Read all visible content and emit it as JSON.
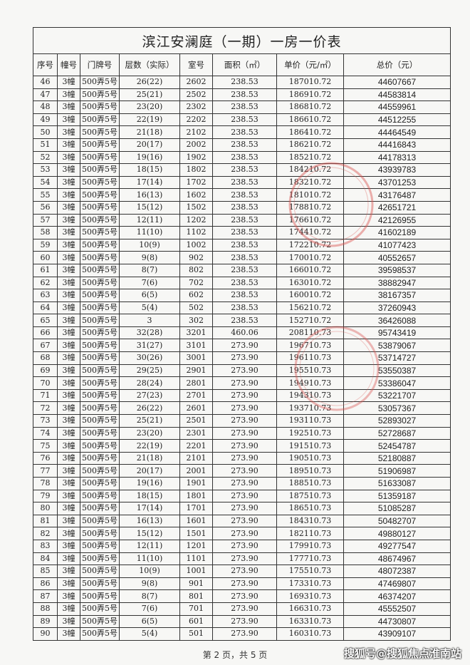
{
  "title": "滨江安澜庭（一期）一房一价表",
  "headers": [
    "序号",
    "幢号",
    "门牌号",
    "层数（实际）",
    "室号",
    "面积（㎡）",
    "单价（元/㎡）",
    "总价（元）"
  ],
  "rows": [
    [
      "46",
      "3幢",
      "500弄5号",
      "26(22)",
      "2602",
      "238.53",
      "187010.72",
      "44607667"
    ],
    [
      "47",
      "3幢",
      "500弄5号",
      "25(21)",
      "2502",
      "238.53",
      "186910.72",
      "44583814"
    ],
    [
      "48",
      "3幢",
      "500弄5号",
      "23(20)",
      "2302",
      "238.53",
      "186810.72",
      "44559961"
    ],
    [
      "49",
      "3幢",
      "500弄5号",
      "22(19)",
      "2202",
      "238.53",
      "186610.72",
      "44512255"
    ],
    [
      "50",
      "3幢",
      "500弄5号",
      "21(18)",
      "2102",
      "238.53",
      "186410.72",
      "44464549"
    ],
    [
      "51",
      "3幢",
      "500弄5号",
      "20(17)",
      "2002",
      "238.53",
      "186210.72",
      "44416843"
    ],
    [
      "52",
      "3幢",
      "500弄5号",
      "19(16)",
      "1902",
      "238.53",
      "185210.72",
      "44178313"
    ],
    [
      "53",
      "3幢",
      "500弄5号",
      "18(15)",
      "1802",
      "238.53",
      "184210.72",
      "43939783"
    ],
    [
      "54",
      "3幢",
      "500弄5号",
      "17(14)",
      "1702",
      "238.53",
      "183210.72",
      "43701253"
    ],
    [
      "55",
      "3幢",
      "500弄5号",
      "16(13)",
      "1602",
      "238.53",
      "181010.72",
      "43176487"
    ],
    [
      "56",
      "3幢",
      "500弄5号",
      "15(12)",
      "1502",
      "238.53",
      "178810.72",
      "42651721"
    ],
    [
      "57",
      "3幢",
      "500弄5号",
      "12(11)",
      "1202",
      "238.53",
      "176610.72",
      "42126955"
    ],
    [
      "58",
      "3幢",
      "500弄5号",
      "11(10)",
      "1102",
      "238.53",
      "174410.72",
      "41602189"
    ],
    [
      "59",
      "3幢",
      "500弄5号",
      "10(9)",
      "1002",
      "238.53",
      "172210.72",
      "41077423"
    ],
    [
      "60",
      "3幢",
      "500弄5号",
      "9(8)",
      "902",
      "238.53",
      "170010.72",
      "40552657"
    ],
    [
      "61",
      "3幢",
      "500弄5号",
      "8(7)",
      "802",
      "238.53",
      "166010.72",
      "39598537"
    ],
    [
      "62",
      "3幢",
      "500弄5号",
      "7(6)",
      "702",
      "238.53",
      "163010.72",
      "38882947"
    ],
    [
      "63",
      "3幢",
      "500弄5号",
      "6(5)",
      "602",
      "238.53",
      "160010.72",
      "38167357"
    ],
    [
      "64",
      "3幢",
      "500弄5号",
      "5(4)",
      "502",
      "238.53",
      "156210.72",
      "37260943"
    ],
    [
      "65",
      "3幢",
      "500弄5号",
      "3",
      "302",
      "238.53",
      "152710.72",
      "36426088"
    ],
    [
      "66",
      "3幢",
      "500弄5号",
      "32(28)",
      "3201",
      "460.06",
      "208110.73",
      "95743419"
    ],
    [
      "67",
      "3幢",
      "500弄5号",
      "31(27)",
      "3101",
      "273.90",
      "196710.73",
      "53879067"
    ],
    [
      "68",
      "3幢",
      "500弄5号",
      "30(26)",
      "3001",
      "273.90",
      "196110.73",
      "53714727"
    ],
    [
      "69",
      "3幢",
      "500弄5号",
      "29(25)",
      "2901",
      "273.90",
      "195510.73",
      "53550387"
    ],
    [
      "70",
      "3幢",
      "500弄5号",
      "28(24)",
      "2801",
      "273.90",
      "194910.73",
      "53386047"
    ],
    [
      "71",
      "3幢",
      "500弄5号",
      "27(23)",
      "2701",
      "273.90",
      "194310.73",
      "53221707"
    ],
    [
      "72",
      "3幢",
      "500弄5号",
      "26(22)",
      "2601",
      "273.90",
      "193710.73",
      "53057367"
    ],
    [
      "73",
      "3幢",
      "500弄5号",
      "25(21)",
      "2501",
      "273.90",
      "193110.73",
      "52893027"
    ],
    [
      "74",
      "3幢",
      "500弄5号",
      "23(20)",
      "2301",
      "273.90",
      "192510.73",
      "52728687"
    ],
    [
      "75",
      "3幢",
      "500弄5号",
      "22(19)",
      "2201",
      "273.90",
      "191510.73",
      "52454787"
    ],
    [
      "76",
      "3幢",
      "500弄5号",
      "21(18)",
      "2101",
      "273.90",
      "190510.73",
      "52180887"
    ],
    [
      "77",
      "3幢",
      "500弄5号",
      "20(17)",
      "2001",
      "273.90",
      "189510.73",
      "51906987"
    ],
    [
      "78",
      "3幢",
      "500弄5号",
      "19(16)",
      "1901",
      "273.90",
      "188510.73",
      "51633087"
    ],
    [
      "79",
      "3幢",
      "500弄5号",
      "18(15)",
      "1801",
      "273.90",
      "187510.73",
      "51359187"
    ],
    [
      "80",
      "3幢",
      "500弄5号",
      "17(14)",
      "1701",
      "273.90",
      "186510.73",
      "51085287"
    ],
    [
      "81",
      "3幢",
      "500弄5号",
      "16(13)",
      "1601",
      "273.90",
      "184310.73",
      "50482707"
    ],
    [
      "82",
      "3幢",
      "500弄5号",
      "15(12)",
      "1501",
      "273.90",
      "182110.73",
      "49880127"
    ],
    [
      "83",
      "3幢",
      "500弄5号",
      "12(11)",
      "1201",
      "273.90",
      "179910.73",
      "49277547"
    ],
    [
      "84",
      "3幢",
      "500弄5号",
      "11(10)",
      "1101",
      "273.90",
      "177710.73",
      "48674967"
    ],
    [
      "85",
      "3幢",
      "500弄5号",
      "10(9)",
      "1001",
      "273.90",
      "175510.73",
      "48072387"
    ],
    [
      "86",
      "3幢",
      "500弄5号",
      "9(8)",
      "901",
      "273.90",
      "173310.73",
      "47469807"
    ],
    [
      "87",
      "3幢",
      "500弄5号",
      "8(7)",
      "801",
      "273.90",
      "169310.73",
      "46374207"
    ],
    [
      "88",
      "3幢",
      "500弄5号",
      "7(6)",
      "701",
      "273.90",
      "166310.73",
      "45552507"
    ],
    [
      "89",
      "3幢",
      "500弄5号",
      "6(5)",
      "601",
      "273.90",
      "163310.73",
      "44730807"
    ],
    [
      "90",
      "3幢",
      "500弄5号",
      "5(4)",
      "501",
      "273.90",
      "160310.73",
      "43909107"
    ]
  ],
  "footer": "第 2 页，共 5 页",
  "watermark": "搜狐号@搜狐焦点淮南站",
  "stamp_color": "#d9534f"
}
